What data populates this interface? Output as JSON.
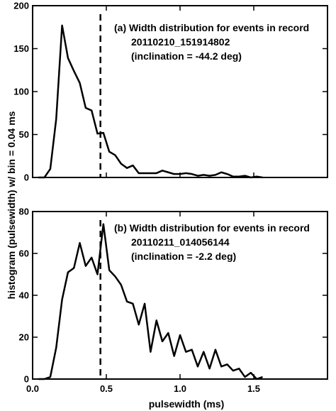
{
  "figure": {
    "ylabel": "histogram (pulsewidth) w/ bin = 0.04 ms",
    "xlabel": "pulsewidth (ms)",
    "line_color": "#000000",
    "marker_color": "#000000"
  },
  "chart_data": [
    {
      "type": "line",
      "panel": "a",
      "title_lines": [
        "(a) Width distribution for events in record",
        "20110210_151914802",
        "(inclination = -44.2 deg)"
      ],
      "xlim": [
        0.0,
        2.0
      ],
      "ylim": [
        0,
        200
      ],
      "xticks": [
        0.0,
        0.5,
        1.0,
        1.5
      ],
      "xtick_labels": [
        "",
        "",
        "",
        ""
      ],
      "yticks": [
        0,
        50,
        100,
        150,
        200
      ],
      "ytick_labels": [
        "0",
        "50",
        "100",
        "150",
        "200"
      ],
      "vline_x": 0.46,
      "x": [
        0.04,
        0.08,
        0.12,
        0.16,
        0.2,
        0.24,
        0.28,
        0.32,
        0.36,
        0.4,
        0.44,
        0.48,
        0.52,
        0.56,
        0.6,
        0.64,
        0.68,
        0.72,
        0.76,
        0.8,
        0.84,
        0.88,
        0.92,
        0.96,
        1.0,
        1.04,
        1.08,
        1.12,
        1.16,
        1.2,
        1.24,
        1.28,
        1.32,
        1.36,
        1.4,
        1.44,
        1.48,
        1.52,
        1.56
      ],
      "y": [
        0,
        0,
        10,
        68,
        177,
        139,
        124,
        110,
        81,
        78,
        51,
        52,
        30,
        26,
        16,
        11,
        14,
        5,
        5,
        5,
        5,
        8,
        6,
        4,
        4,
        5,
        4,
        2,
        3,
        2,
        3,
        6,
        4,
        1,
        1,
        2,
        0,
        1,
        0
      ]
    },
    {
      "type": "line",
      "panel": "b",
      "title_lines": [
        "(b) Width distribution for events in record",
        "20110211_014056144",
        "(inclination = -2.2 deg)"
      ],
      "xlim": [
        0.0,
        2.0
      ],
      "ylim": [
        0,
        80
      ],
      "xticks": [
        0.0,
        0.5,
        1.0,
        1.5
      ],
      "xtick_labels": [
        "0.0",
        "0.5",
        "1.0",
        "1.5"
      ],
      "yticks": [
        0,
        20,
        40,
        60,
        80
      ],
      "ytick_labels": [
        "0",
        "20",
        "40",
        "60",
        "80"
      ],
      "vline_x": 0.46,
      "x": [
        0.04,
        0.08,
        0.12,
        0.16,
        0.2,
        0.24,
        0.28,
        0.32,
        0.36,
        0.4,
        0.44,
        0.48,
        0.52,
        0.56,
        0.6,
        0.64,
        0.68,
        0.72,
        0.76,
        0.8,
        0.84,
        0.88,
        0.92,
        0.96,
        1.0,
        1.04,
        1.08,
        1.12,
        1.16,
        1.2,
        1.24,
        1.28,
        1.32,
        1.36,
        1.4,
        1.44,
        1.48,
        1.52,
        1.56
      ],
      "y": [
        0,
        0,
        1,
        15,
        38,
        51,
        53,
        65,
        54,
        58,
        50,
        74,
        52,
        49,
        45,
        37,
        36,
        26,
        36,
        13,
        28,
        18,
        22,
        11,
        21,
        13,
        14,
        6,
        13,
        5,
        14,
        6,
        7,
        4,
        5,
        1,
        3,
        0,
        1
      ]
    }
  ]
}
